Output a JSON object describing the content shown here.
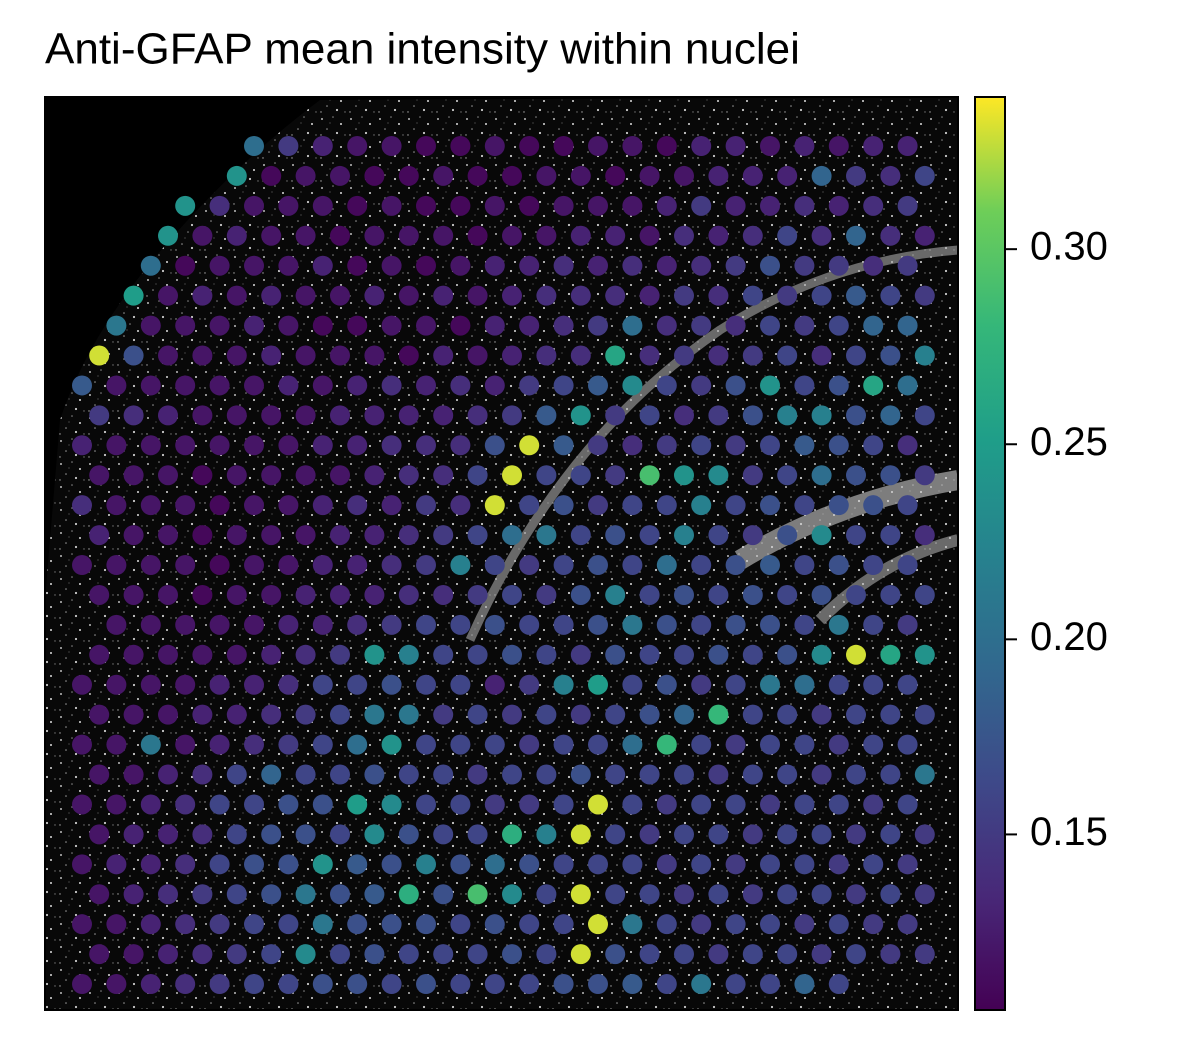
{
  "chart_data": {
    "type": "spatial",
    "title": "Anti-GFAP mean intensity within nuclei",
    "colormap": "viridis",
    "clim": [
      0.105,
      0.339
    ],
    "cticks": [
      0.15,
      {
        "value": 0.2,
        "label": "0.20"
      },
      0.25,
      {
        "value": 0.3,
        "label": "0.30"
      }
    ],
    "rows": [
      {
        "array_col_start": 10,
        "values": [
          0.2,
          0.15,
          0.13,
          0.12,
          0.12,
          0.11,
          0.11,
          0.12,
          0.11,
          0.11,
          0.12,
          0.12,
          0.11,
          0.13,
          0.13,
          0.12,
          0.13,
          0.12,
          0.13,
          0.13
        ]
      },
      {
        "array_col_start": 9,
        "values": [
          0.24,
          0.11,
          0.12,
          0.12,
          0.11,
          0.11,
          0.12,
          0.11,
          0.11,
          0.12,
          0.12,
          0.11,
          0.12,
          0.12,
          0.13,
          0.13,
          0.13,
          0.19,
          0.15,
          0.14,
          0.16
        ]
      },
      {
        "array_col_start": 6,
        "values": [
          0.24,
          0.14,
          0.12,
          0.12,
          0.12,
          0.11,
          0.12,
          0.11,
          0.11,
          0.12,
          0.11,
          0.12,
          0.12,
          0.12,
          0.13,
          0.15,
          0.13,
          0.13,
          0.14,
          0.13,
          0.14,
          0.15
        ]
      },
      {
        "array_col_start": 5,
        "values": [
          0.24,
          0.12,
          0.13,
          0.12,
          0.12,
          0.11,
          0.12,
          0.12,
          0.12,
          0.11,
          0.12,
          0.12,
          0.13,
          0.13,
          0.12,
          0.14,
          0.13,
          0.14,
          0.16,
          0.14,
          0.19,
          0.14,
          0.13
        ]
      },
      {
        "array_col_start": 4,
        "values": [
          0.2,
          0.11,
          0.12,
          0.12,
          0.12,
          0.13,
          0.11,
          0.12,
          0.11,
          0.12,
          0.13,
          0.13,
          0.14,
          0.13,
          0.14,
          0.13,
          0.14,
          0.15,
          0.17,
          0.15,
          0.15,
          0.14,
          0.15
        ]
      },
      {
        "array_col_start": 3,
        "values": [
          0.25,
          0.12,
          0.13,
          0.12,
          0.13,
          0.12,
          0.12,
          0.13,
          0.12,
          0.13,
          0.12,
          0.13,
          0.14,
          0.14,
          0.14,
          0.13,
          0.15,
          0.14,
          0.16,
          0.15,
          0.16,
          0.18,
          0.16,
          0.15
        ]
      },
      {
        "array_col_start": 2,
        "values": [
          0.21,
          0.12,
          0.12,
          0.12,
          0.13,
          0.12,
          0.11,
          0.11,
          0.12,
          0.12,
          0.11,
          0.13,
          0.13,
          0.14,
          0.15,
          0.2,
          0.14,
          0.15,
          0.14,
          0.16,
          0.15,
          0.16,
          0.19,
          0.19
        ]
      },
      {
        "array_col_start": 1,
        "values": [
          0.33,
          0.17,
          0.12,
          0.12,
          0.12,
          0.13,
          0.12,
          0.12,
          0.12,
          0.11,
          0.13,
          0.12,
          0.13,
          0.14,
          0.14,
          0.26,
          0.14,
          0.15,
          0.14,
          0.15,
          0.16,
          0.14,
          0.16,
          0.17,
          0.22
        ]
      },
      {
        "array_col_start": 0,
        "values": [
          0.18,
          0.12,
          0.12,
          0.12,
          0.12,
          0.12,
          0.13,
          0.12,
          0.13,
          0.14,
          0.13,
          0.14,
          0.13,
          0.15,
          0.16,
          0.18,
          0.23,
          0.16,
          0.15,
          0.17,
          0.24,
          0.16,
          0.17,
          0.26,
          0.2
        ]
      },
      {
        "array_col_start": 1,
        "values": [
          0.15,
          0.14,
          0.13,
          0.12,
          0.12,
          0.12,
          0.12,
          0.13,
          0.13,
          0.13,
          0.13,
          0.14,
          0.15,
          0.18,
          0.24,
          0.15,
          0.16,
          0.14,
          0.15,
          0.17,
          0.22,
          0.22,
          0.17,
          0.19,
          0.16
        ]
      },
      {
        "array_col_start": 0,
        "values": [
          0.13,
          0.12,
          0.12,
          0.12,
          0.12,
          0.12,
          0.12,
          0.13,
          0.13,
          0.14,
          0.14,
          0.14,
          0.17,
          0.33,
          0.18,
          0.15,
          0.14,
          0.15,
          0.16,
          0.15,
          0.16,
          0.18,
          0.17,
          0.16,
          0.14
        ]
      },
      {
        "array_col_start": 1,
        "values": [
          0.12,
          0.12,
          0.12,
          0.11,
          0.12,
          0.12,
          0.12,
          0.12,
          0.13,
          0.14,
          0.14,
          0.16,
          0.33,
          0.16,
          0.16,
          0.15,
          0.29,
          0.24,
          0.23,
          0.15,
          0.16,
          0.2,
          0.17,
          0.17,
          0.15
        ]
      },
      {
        "array_col_start": 0,
        "values": [
          0.14,
          0.12,
          0.12,
          0.12,
          0.11,
          0.12,
          0.12,
          0.13,
          0.14,
          0.13,
          0.15,
          0.14,
          0.33,
          0.16,
          0.17,
          0.15,
          0.16,
          0.16,
          0.22,
          0.16,
          0.17,
          0.16,
          0.17,
          0.17,
          0.16
        ]
      },
      {
        "array_col_start": 1,
        "values": [
          0.13,
          0.12,
          0.12,
          0.11,
          0.12,
          0.12,
          0.12,
          0.13,
          0.13,
          0.14,
          0.15,
          0.16,
          0.2,
          0.21,
          0.16,
          0.17,
          0.16,
          0.22,
          0.16,
          0.15,
          0.17,
          0.23,
          0.16,
          0.16,
          0.14
        ]
      },
      {
        "array_col_start": 0,
        "values": [
          0.12,
          0.12,
          0.12,
          0.12,
          0.11,
          0.12,
          0.12,
          0.13,
          0.13,
          0.14,
          0.15,
          0.22,
          0.16,
          0.15,
          0.16,
          0.17,
          0.16,
          0.2,
          0.16,
          0.17,
          0.18,
          0.16,
          0.17,
          0.16,
          0.16
        ]
      },
      {
        "array_col_start": 1,
        "values": [
          0.12,
          0.12,
          0.12,
          0.11,
          0.12,
          0.12,
          0.13,
          0.13,
          0.13,
          0.14,
          0.14,
          0.15,
          0.16,
          0.15,
          0.17,
          0.22,
          0.16,
          0.17,
          0.16,
          0.17,
          0.16,
          0.17,
          0.16,
          0.16,
          0.16
        ]
      },
      {
        "array_col_start": 2,
        "values": [
          0.12,
          0.12,
          0.12,
          0.12,
          0.12,
          0.13,
          0.13,
          0.14,
          0.15,
          0.16,
          0.16,
          0.17,
          0.16,
          0.16,
          0.17,
          0.21,
          0.17,
          0.16,
          0.17,
          0.17,
          0.16,
          0.21,
          0.16,
          0.15
        ]
      },
      {
        "array_col_start": 1,
        "values": [
          0.12,
          0.12,
          0.12,
          0.12,
          0.12,
          0.13,
          0.14,
          0.15,
          0.24,
          0.22,
          0.16,
          0.16,
          0.17,
          0.16,
          0.15,
          0.17,
          0.16,
          0.16,
          0.17,
          0.16,
          0.17,
          0.23,
          0.33,
          0.26,
          0.24
        ]
      },
      {
        "array_col_start": 0,
        "values": [
          0.12,
          0.12,
          0.12,
          0.12,
          0.13,
          0.13,
          0.14,
          0.16,
          0.16,
          0.17,
          0.16,
          0.16,
          0.13,
          0.15,
          0.22,
          0.25,
          0.16,
          0.17,
          0.15,
          0.16,
          0.21,
          0.2,
          0.16,
          0.16,
          0.16
        ]
      },
      {
        "array_col_start": 1,
        "values": [
          0.12,
          0.12,
          0.12,
          0.13,
          0.13,
          0.14,
          0.15,
          0.16,
          0.21,
          0.21,
          0.15,
          0.16,
          0.15,
          0.16,
          0.15,
          0.16,
          0.17,
          0.19,
          0.28,
          0.16,
          0.16,
          0.15,
          0.16,
          0.16,
          0.16
        ]
      },
      {
        "array_col_start": 0,
        "values": [
          0.12,
          0.12,
          0.21,
          0.12,
          0.13,
          0.14,
          0.15,
          0.16,
          0.2,
          0.24,
          0.16,
          0.16,
          0.16,
          0.15,
          0.16,
          0.16,
          0.2,
          0.28,
          0.16,
          0.15,
          0.16,
          0.16,
          0.15,
          0.16,
          0.16
        ]
      },
      {
        "array_col_start": 1,
        "values": [
          0.12,
          0.12,
          0.13,
          0.14,
          0.16,
          0.19,
          0.16,
          0.16,
          0.17,
          0.16,
          0.16,
          0.15,
          0.16,
          0.16,
          0.17,
          0.16,
          0.16,
          0.16,
          0.15,
          0.16,
          0.16,
          0.15,
          0.16,
          0.16,
          0.21
        ]
      },
      {
        "array_col_start": 0,
        "values": [
          0.12,
          0.12,
          0.13,
          0.14,
          0.16,
          0.16,
          0.17,
          0.17,
          0.25,
          0.23,
          0.16,
          0.16,
          0.15,
          0.15,
          0.16,
          0.33,
          0.16,
          0.15,
          0.16,
          0.16,
          0.15,
          0.16,
          0.16,
          0.15,
          0.16
        ]
      },
      {
        "array_col_start": 1,
        "values": [
          0.12,
          0.13,
          0.13,
          0.14,
          0.16,
          0.17,
          0.17,
          0.16,
          0.23,
          0.17,
          0.16,
          0.16,
          0.27,
          0.22,
          0.33,
          0.16,
          0.15,
          0.16,
          0.16,
          0.15,
          0.16,
          0.16,
          0.15,
          0.16,
          0.15
        ]
      },
      {
        "array_col_start": 0,
        "values": [
          0.12,
          0.13,
          0.13,
          0.14,
          0.16,
          0.17,
          0.17,
          0.24,
          0.18,
          0.17,
          0.22,
          0.17,
          0.2,
          0.17,
          0.16,
          0.16,
          0.16,
          0.15,
          0.16,
          0.15,
          0.16,
          0.16,
          0.15,
          0.16,
          0.15
        ]
      },
      {
        "array_col_start": 1,
        "values": [
          0.12,
          0.13,
          0.14,
          0.15,
          0.16,
          0.17,
          0.21,
          0.17,
          0.18,
          0.27,
          0.17,
          0.29,
          0.23,
          0.16,
          0.33,
          0.16,
          0.16,
          0.15,
          0.16,
          0.15,
          0.16,
          0.16,
          0.15,
          0.16,
          0.15
        ]
      },
      {
        "array_col_start": 0,
        "values": [
          0.12,
          0.12,
          0.13,
          0.14,
          0.15,
          0.16,
          0.16,
          0.21,
          0.17,
          0.17,
          0.17,
          0.16,
          0.17,
          0.16,
          0.16,
          0.33,
          0.21,
          0.16,
          0.15,
          0.16,
          0.16,
          0.15,
          0.16,
          0.15,
          0.15
        ]
      },
      {
        "array_col_start": 1,
        "values": [
          0.12,
          0.12,
          0.13,
          0.14,
          0.15,
          0.16,
          0.23,
          0.16,
          0.17,
          0.16,
          0.16,
          0.16,
          0.17,
          0.16,
          0.33,
          0.17,
          0.16,
          0.16,
          0.15,
          0.16,
          0.16,
          0.15,
          0.16,
          0.15,
          0.15
        ]
      },
      {
        "array_col_start": 0,
        "values": [
          0.12,
          0.12,
          0.13,
          0.14,
          0.15,
          0.16,
          0.16,
          0.17,
          0.17,
          0.16,
          0.17,
          0.16,
          0.16,
          0.16,
          0.17,
          0.17,
          0.18,
          0.16,
          0.21,
          0.16,
          0.16,
          0.19,
          0.16
        ]
      }
    ]
  }
}
